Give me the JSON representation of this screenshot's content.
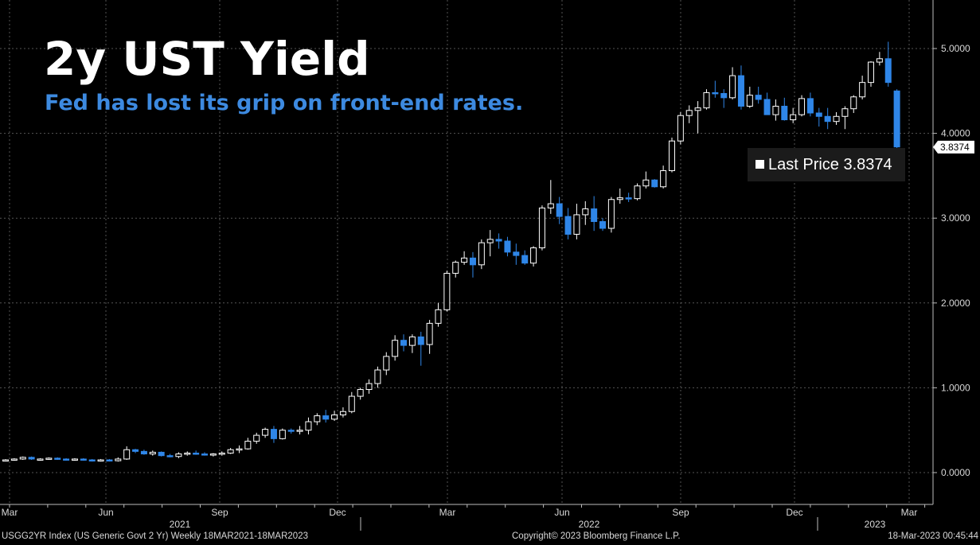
{
  "title": "2y UST Yield",
  "subtitle": "Fed has lost its grip on front-end rates.",
  "last_price": {
    "label": "Last Price",
    "value": "3.8374",
    "tag": "3.8374"
  },
  "footer": {
    "left": "USGG2YR Index (US Generic Govt 2 Yr)  Weekly 18MAR2021-18MAR2023",
    "center": "Copyright© 2023 Bloomberg Finance L.P.",
    "right": "18-Mar-2023 00:45:44"
  },
  "colors": {
    "background": "#000000",
    "up_candle": "#ffffff",
    "down_candle": "#2f86e8",
    "subtitle": "#3d8ae0",
    "grid": "#555555"
  },
  "chart_data": {
    "type": "candlestick",
    "interval": "Weekly",
    "ylim": [
      -0.35,
      5.55
    ],
    "yticks": [
      "0.0000",
      "1.0000",
      "2.0000",
      "3.0000",
      "4.0000",
      "5.0000"
    ],
    "ytick_values": [
      0,
      1,
      2,
      3,
      4,
      5
    ],
    "xticks": [
      "Mar",
      "Jun",
      "Sep",
      "Dec",
      "Mar",
      "Jun",
      "Sep",
      "Dec",
      "Mar"
    ],
    "year_labels": [
      "2021",
      "2022",
      "2023"
    ],
    "grid": true,
    "candles": [
      [
        0.15,
        0.16,
        0.14,
        0.15
      ],
      [
        0.15,
        0.17,
        0.14,
        0.16
      ],
      [
        0.16,
        0.19,
        0.15,
        0.18
      ],
      [
        0.18,
        0.19,
        0.15,
        0.16
      ],
      [
        0.16,
        0.17,
        0.14,
        0.16
      ],
      [
        0.16,
        0.18,
        0.15,
        0.17
      ],
      [
        0.17,
        0.18,
        0.15,
        0.16
      ],
      [
        0.16,
        0.17,
        0.14,
        0.15
      ],
      [
        0.15,
        0.17,
        0.14,
        0.16
      ],
      [
        0.16,
        0.17,
        0.14,
        0.15
      ],
      [
        0.15,
        0.16,
        0.13,
        0.14
      ],
      [
        0.14,
        0.16,
        0.13,
        0.15
      ],
      [
        0.15,
        0.16,
        0.13,
        0.14
      ],
      [
        0.14,
        0.18,
        0.13,
        0.16
      ],
      [
        0.16,
        0.31,
        0.15,
        0.27
      ],
      [
        0.27,
        0.28,
        0.23,
        0.25
      ],
      [
        0.25,
        0.27,
        0.21,
        0.22
      ],
      [
        0.22,
        0.26,
        0.2,
        0.24
      ],
      [
        0.24,
        0.25,
        0.19,
        0.2
      ],
      [
        0.2,
        0.22,
        0.18,
        0.19
      ],
      [
        0.19,
        0.24,
        0.17,
        0.22
      ],
      [
        0.22,
        0.25,
        0.2,
        0.23
      ],
      [
        0.23,
        0.26,
        0.21,
        0.22
      ],
      [
        0.22,
        0.24,
        0.2,
        0.21
      ],
      [
        0.21,
        0.23,
        0.19,
        0.22
      ],
      [
        0.22,
        0.25,
        0.2,
        0.23
      ],
      [
        0.23,
        0.29,
        0.22,
        0.27
      ],
      [
        0.27,
        0.32,
        0.23,
        0.28
      ],
      [
        0.28,
        0.41,
        0.27,
        0.37
      ],
      [
        0.37,
        0.47,
        0.34,
        0.44
      ],
      [
        0.44,
        0.53,
        0.41,
        0.51
      ],
      [
        0.51,
        0.55,
        0.35,
        0.4
      ],
      [
        0.4,
        0.52,
        0.39,
        0.5
      ],
      [
        0.5,
        0.52,
        0.46,
        0.49
      ],
      [
        0.49,
        0.55,
        0.45,
        0.5
      ],
      [
        0.5,
        0.65,
        0.45,
        0.6
      ],
      [
        0.6,
        0.7,
        0.56,
        0.67
      ],
      [
        0.67,
        0.74,
        0.59,
        0.63
      ],
      [
        0.63,
        0.73,
        0.61,
        0.68
      ],
      [
        0.68,
        0.77,
        0.65,
        0.72
      ],
      [
        0.72,
        0.95,
        0.7,
        0.9
      ],
      [
        0.9,
        1.0,
        0.86,
        0.98
      ],
      [
        0.98,
        1.1,
        0.93,
        1.05
      ],
      [
        1.05,
        1.25,
        1.0,
        1.21
      ],
      [
        1.21,
        1.42,
        1.15,
        1.37
      ],
      [
        1.37,
        1.62,
        1.32,
        1.56
      ],
      [
        1.56,
        1.63,
        1.43,
        1.5
      ],
      [
        1.5,
        1.63,
        1.41,
        1.6
      ],
      [
        1.6,
        1.66,
        1.26,
        1.51
      ],
      [
        1.51,
        1.8,
        1.4,
        1.76
      ],
      [
        1.76,
        2.0,
        1.72,
        1.92
      ],
      [
        1.92,
        2.38,
        1.9,
        2.35
      ],
      [
        2.35,
        2.5,
        2.3,
        2.48
      ],
      [
        2.48,
        2.61,
        2.45,
        2.53
      ],
      [
        2.53,
        2.6,
        2.3,
        2.45
      ],
      [
        2.45,
        2.75,
        2.4,
        2.71
      ],
      [
        2.71,
        2.86,
        2.55,
        2.75
      ],
      [
        2.75,
        2.82,
        2.64,
        2.73
      ],
      [
        2.73,
        2.78,
        2.55,
        2.6
      ],
      [
        2.6,
        2.7,
        2.45,
        2.56
      ],
      [
        2.56,
        2.62,
        2.45,
        2.47
      ],
      [
        2.47,
        2.67,
        2.43,
        2.65
      ],
      [
        2.65,
        3.15,
        2.62,
        3.12
      ],
      [
        3.12,
        3.45,
        3.05,
        3.17
      ],
      [
        3.17,
        3.25,
        2.93,
        3.02
      ],
      [
        3.02,
        3.12,
        2.75,
        2.81
      ],
      [
        2.81,
        3.17,
        2.75,
        3.04
      ],
      [
        3.04,
        3.2,
        2.92,
        3.11
      ],
      [
        3.11,
        3.26,
        2.85,
        2.96
      ],
      [
        2.96,
        3.0,
        2.85,
        2.88
      ],
      [
        2.88,
        3.25,
        2.83,
        3.22
      ],
      [
        3.22,
        3.35,
        3.17,
        3.24
      ],
      [
        3.24,
        3.3,
        3.19,
        3.23
      ],
      [
        3.23,
        3.41,
        3.21,
        3.38
      ],
      [
        3.38,
        3.55,
        3.35,
        3.45
      ],
      [
        3.45,
        3.46,
        3.36,
        3.37
      ],
      [
        3.37,
        3.62,
        3.35,
        3.56
      ],
      [
        3.56,
        3.95,
        3.54,
        3.91
      ],
      [
        3.91,
        4.25,
        3.87,
        4.21
      ],
      [
        4.21,
        4.33,
        4.12,
        4.27
      ],
      [
        4.27,
        4.38,
        4.0,
        4.3
      ],
      [
        4.3,
        4.52,
        4.28,
        4.48
      ],
      [
        4.48,
        4.62,
        4.42,
        4.47
      ],
      [
        4.47,
        4.52,
        4.3,
        4.42
      ],
      [
        4.42,
        4.78,
        4.4,
        4.68
      ],
      [
        4.68,
        4.8,
        4.28,
        4.32
      ],
      [
        4.32,
        4.55,
        4.3,
        4.45
      ],
      [
        4.45,
        4.55,
        4.35,
        4.4
      ],
      [
        4.4,
        4.48,
        4.22,
        4.22
      ],
      [
        4.22,
        4.4,
        4.15,
        4.32
      ],
      [
        4.32,
        4.42,
        4.15,
        4.16
      ],
      [
        4.16,
        4.3,
        4.12,
        4.22
      ],
      [
        4.22,
        4.45,
        4.2,
        4.41
      ],
      [
        4.41,
        4.48,
        4.2,
        4.24
      ],
      [
        4.24,
        4.3,
        4.08,
        4.2
      ],
      [
        4.2,
        4.3,
        4.05,
        4.14
      ],
      [
        4.14,
        4.25,
        4.1,
        4.2
      ],
      [
        4.2,
        4.32,
        4.05,
        4.29
      ],
      [
        4.29,
        4.45,
        4.24,
        4.43
      ],
      [
        4.43,
        4.68,
        4.4,
        4.6
      ],
      [
        4.6,
        4.85,
        4.55,
        4.84
      ],
      [
        4.84,
        4.96,
        4.8,
        4.88
      ],
      [
        4.88,
        5.08,
        4.55,
        4.6
      ],
      [
        4.5,
        4.52,
        3.7,
        3.84
      ]
    ],
    "last_value": 3.8374
  }
}
